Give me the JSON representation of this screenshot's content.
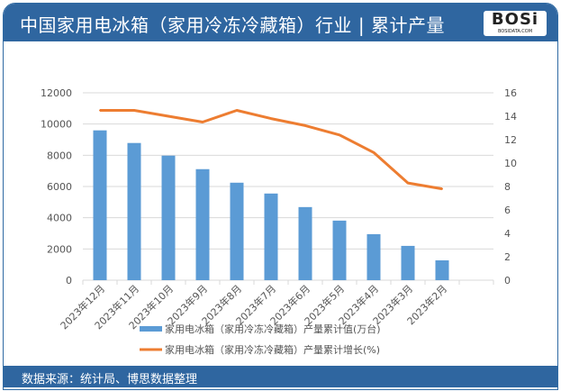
{
  "header": {
    "title": "中国家用电冰箱（家用冷冻冷藏箱）行业 | 累计产量",
    "logo_text": "BOSi",
    "logo_sub": "BOSIDATA.COM"
  },
  "footer": {
    "source": "数据来源：统计局、博思数据整理"
  },
  "chart_data": {
    "type": "bar+line",
    "categories": [
      "2023年12月",
      "2023年11月",
      "2023年10月",
      "2023年9月",
      "2023年8月",
      "2023年7月",
      "2023年6月",
      "2023年5月",
      "2023年4月",
      "2023年3月",
      "2023年2月"
    ],
    "series": [
      {
        "name": "家用电冰箱（家用冷冻冷藏箱）产量累计值(万台)",
        "type": "bar",
        "axis": "left",
        "color": "#5b9bd5",
        "values": [
          9595,
          8786,
          7977,
          7110,
          6243,
          5549,
          4682,
          3815,
          2948,
          2197,
          1272
        ]
      },
      {
        "name": "家用电冰箱（家用冷冻冷藏箱）产量累计增长(%)",
        "type": "line",
        "axis": "right",
        "color": "#ed7d31",
        "values": [
          14.5,
          14.5,
          14.0,
          13.5,
          14.5,
          13.8,
          13.2,
          12.4,
          10.9,
          8.3,
          7.8
        ]
      }
    ],
    "y_left": {
      "range": [
        0,
        12000
      ],
      "ticks": [
        "0",
        "2000",
        "4000",
        "6000",
        "8000",
        "10000",
        "12000"
      ]
    },
    "y_right": {
      "range": [
        0,
        16
      ],
      "ticks": [
        "0",
        "2",
        "4",
        "6",
        "8",
        "10",
        "12",
        "14",
        "16"
      ]
    },
    "grid": true,
    "legend": "bottom"
  }
}
